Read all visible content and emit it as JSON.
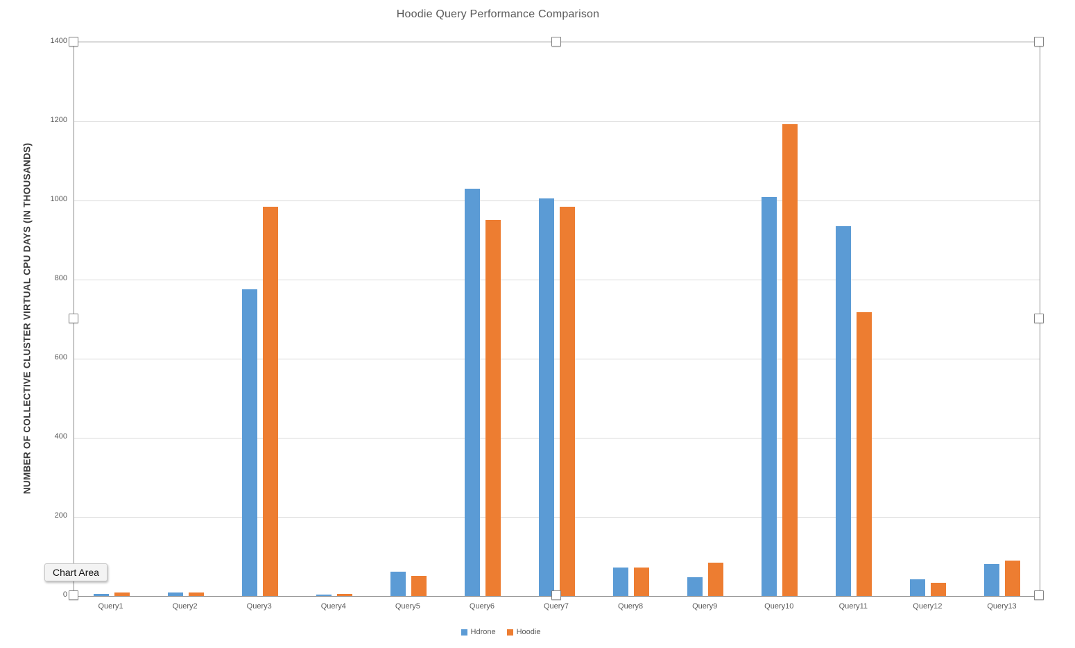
{
  "tooltip": {
    "label": "Chart Area"
  },
  "selection": {
    "target": "plot-area",
    "visible_handles": 8
  },
  "colors": {
    "hdrone": "#5B9BD5",
    "hoodie": "#ED7D31",
    "gridline": "#D9D9D9",
    "axis_line": "#8A8A8A",
    "tick_text": "#595959",
    "title_text": "#595959"
  },
  "chart_data": {
    "type": "bar",
    "title": "Hoodie Query Performance Comparison",
    "xlabel": "",
    "ylabel": "NUMBER OF COLLECTIVE CLUSTER VIRTUAL CPU DAYS (IN THOUSANDS)",
    "categories": [
      "Query1",
      "Query2",
      "Query3",
      "Query4",
      "Query5",
      "Query6",
      "Query7",
      "Query8",
      "Query9",
      "Query10",
      "Query11",
      "Query12",
      "Query13"
    ],
    "series": [
      {
        "name": "Hdrone",
        "color": "#5B9BD5",
        "values": [
          5,
          9,
          775,
          4,
          62,
          1030,
          1005,
          72,
          48,
          1008,
          935,
          42,
          81
        ]
      },
      {
        "name": "Hoodie",
        "color": "#ED7D31",
        "values": [
          9,
          8,
          985,
          5,
          50,
          950,
          985,
          72,
          84,
          1193,
          718,
          34,
          90
        ]
      }
    ],
    "ylim": [
      0,
      1400
    ],
    "ytick_step": 200,
    "grid": "horizontal",
    "legend_position": "bottom"
  }
}
